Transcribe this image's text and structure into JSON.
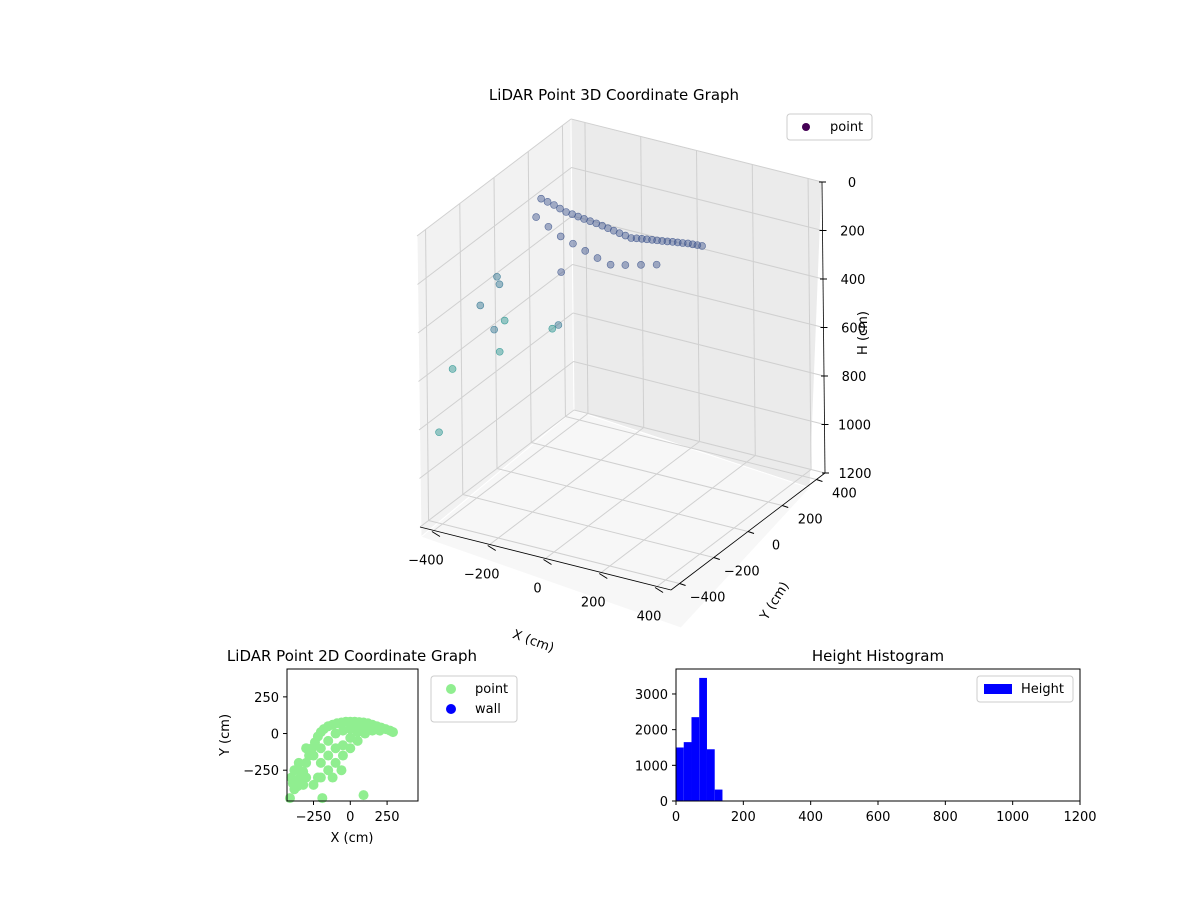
{
  "figure": {
    "background": "#ffffff"
  },
  "chart_data": [
    {
      "type": "scatter",
      "projection": "3d",
      "title": "LiDAR Point 3D Coordinate Graph",
      "xlabel": "X (cm)",
      "ylabel": "Y (cm)",
      "zlabel": "H (cm)",
      "xlim": [
        -450,
        450
      ],
      "ylim": [
        -450,
        450
      ],
      "zlim": [
        0,
        1200
      ],
      "z_inverted": true,
      "xticks": [
        -400,
        -200,
        0,
        200,
        400
      ],
      "yticks": [
        -400,
        -200,
        0,
        200,
        400
      ],
      "zticks": [
        0,
        200,
        400,
        600,
        800,
        1000,
        1200
      ],
      "grid": true,
      "legend": {
        "placement": "top-right",
        "entries": [
          {
            "label": "point",
            "color": "#440154"
          }
        ]
      },
      "colormap": "viridis",
      "series": [
        {
          "name": "point",
          "points": [
            [
              -300,
              30,
              60
            ],
            [
              -260,
              40,
              80
            ],
            [
              -220,
              45,
              100
            ],
            [
              -180,
              50,
              110
            ],
            [
              -140,
              55,
              120
            ],
            [
              -100,
              60,
              130
            ],
            [
              -60,
              62,
              140
            ],
            [
              -20,
              65,
              150
            ],
            [
              20,
              65,
              150
            ],
            [
              60,
              60,
              140
            ],
            [
              100,
              55,
              130
            ],
            [
              140,
              50,
              120
            ],
            [
              180,
              45,
              110
            ],
            [
              220,
              40,
              100
            ],
            [
              260,
              30,
              90
            ],
            [
              -280,
              35,
              70
            ],
            [
              -240,
              42,
              90
            ],
            [
              -200,
              48,
              105
            ],
            [
              -160,
              52,
              115
            ],
            [
              -120,
              58,
              125
            ],
            [
              -80,
              61,
              135
            ],
            [
              -40,
              63,
              145
            ],
            [
              0,
              66,
              155
            ],
            [
              40,
              63,
              145
            ],
            [
              80,
              58,
              135
            ],
            [
              120,
              52,
              125
            ],
            [
              160,
              48,
              115
            ],
            [
              200,
              42,
              105
            ],
            [
              240,
              35,
              95
            ],
            [
              280,
              25,
              85
            ],
            [
              -300,
              0,
              120
            ],
            [
              -250,
              -10,
              140
            ],
            [
              -200,
              -20,
              160
            ],
            [
              -150,
              -30,
              170
            ],
            [
              -100,
              -40,
              180
            ],
            [
              -50,
              -50,
              190
            ],
            [
              0,
              -55,
              200
            ],
            [
              50,
              -50,
              190
            ],
            [
              100,
              -40,
              180
            ],
            [
              150,
              -30,
              170
            ],
            [
              -350,
              -150,
              300
            ],
            [
              -380,
              -200,
              400
            ],
            [
              -300,
              -250,
              450
            ],
            [
              -250,
              -300,
              500
            ],
            [
              -420,
              -300,
              620
            ],
            [
              -440,
              -350,
              860
            ],
            [
              -200,
              -350,
              330
            ],
            [
              -150,
              -100,
              250
            ],
            [
              -100,
              -200,
              400
            ],
            [
              -360,
              -120,
              350
            ],
            [
              -60,
              -300,
              350
            ]
          ]
        }
      ]
    },
    {
      "type": "scatter",
      "title": "LiDAR Point 2D Coordinate Graph",
      "xlabel": "X (cm)",
      "ylabel": "Y (cm)",
      "xlim": [
        -430,
        460
      ],
      "ylim": [
        -460,
        440
      ],
      "xticks": [
        -250,
        0,
        250
      ],
      "yticks": [
        -250,
        0,
        250
      ],
      "legend": {
        "placement": "outside-right",
        "entries": [
          {
            "label": "point",
            "color": "#90ee90"
          },
          {
            "label": "wall",
            "color": "#0000ff"
          }
        ]
      },
      "series": [
        {
          "name": "point",
          "color": "#90ee90",
          "points": [
            [
              -400,
              -300
            ],
            [
              -390,
              -340
            ],
            [
              -380,
              -380
            ],
            [
              -360,
              -360
            ],
            [
              -340,
              -300
            ],
            [
              -320,
              -260
            ],
            [
              -300,
              -200
            ],
            [
              -280,
              -150
            ],
            [
              -260,
              -100
            ],
            [
              -240,
              -60
            ],
            [
              -220,
              -20
            ],
            [
              -200,
              10
            ],
            [
              -180,
              30
            ],
            [
              -150,
              50
            ],
            [
              -120,
              60
            ],
            [
              -90,
              70
            ],
            [
              -60,
              75
            ],
            [
              -30,
              80
            ],
            [
              0,
              80
            ],
            [
              30,
              80
            ],
            [
              60,
              78
            ],
            [
              90,
              75
            ],
            [
              120,
              70
            ],
            [
              150,
              60
            ],
            [
              180,
              50
            ],
            [
              210,
              40
            ],
            [
              240,
              30
            ],
            [
              270,
              20
            ],
            [
              290,
              10
            ],
            [
              -350,
              -250
            ],
            [
              -300,
              -300
            ],
            [
              -250,
              -350
            ],
            [
              -200,
              -300
            ],
            [
              -150,
              -250
            ],
            [
              -100,
              -200
            ],
            [
              -50,
              -150
            ],
            [
              0,
              -100
            ],
            [
              50,
              -50
            ],
            [
              100,
              0
            ],
            [
              150,
              20
            ],
            [
              -250,
              -150
            ],
            [
              -200,
              -100
            ],
            [
              -150,
              -50
            ],
            [
              -100,
              0
            ],
            [
              -50,
              20
            ],
            [
              0,
              30
            ],
            [
              50,
              40
            ],
            [
              100,
              40
            ],
            [
              -300,
              -100
            ],
            [
              -350,
              -200
            ],
            [
              -200,
              -200
            ],
            [
              -100,
              -100
            ],
            [
              0,
              -30
            ],
            [
              -220,
              -300
            ],
            [
              -150,
              -150
            ],
            [
              -50,
              -80
            ],
            [
              50,
              10
            ],
            [
              200,
              20
            ],
            [
              -410,
              -440
            ],
            [
              -190,
              -440
            ],
            [
              90,
              -420
            ],
            [
              -380,
              -250
            ],
            [
              -320,
              -350
            ],
            [
              -120,
              -300
            ],
            [
              -60,
              -250
            ]
          ]
        }
      ]
    },
    {
      "type": "bar",
      "subtype": "histogram",
      "title": "Height Histogram",
      "xlim": [
        0,
        1200
      ],
      "ylim": [
        0,
        3700
      ],
      "xticks": [
        0,
        200,
        400,
        600,
        800,
        1000,
        1200
      ],
      "yticks": [
        0,
        1000,
        2000,
        3000
      ],
      "legend": {
        "placement": "top-right",
        "entries": [
          {
            "label": "Height",
            "color": "#0000ff"
          }
        ]
      },
      "series": [
        {
          "name": "Height",
          "color": "#0000ff",
          "bins": [
            {
              "x0": 0,
              "x1": 23,
              "value": 1500
            },
            {
              "x0": 23,
              "x1": 46,
              "value": 1650
            },
            {
              "x0": 46,
              "x1": 69,
              "value": 2350
            },
            {
              "x0": 69,
              "x1": 92,
              "value": 3450
            },
            {
              "x0": 92,
              "x1": 115,
              "value": 1450
            },
            {
              "x0": 115,
              "x1": 138,
              "value": 320
            }
          ]
        }
      ]
    }
  ]
}
